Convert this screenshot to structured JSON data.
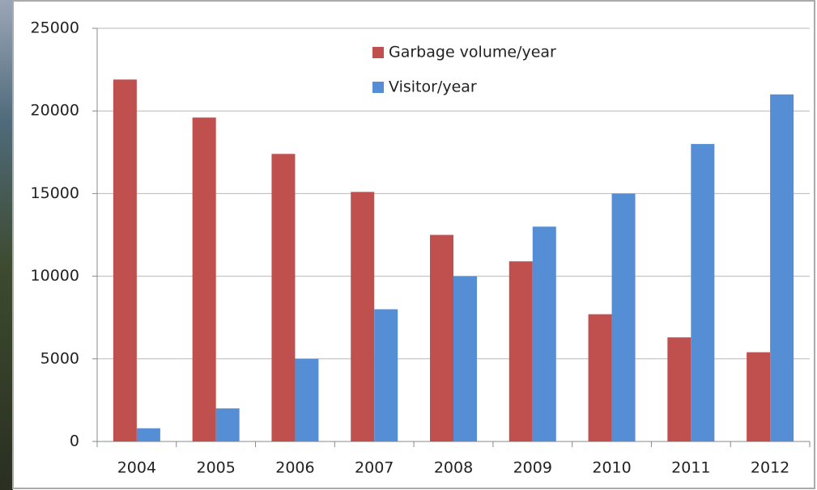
{
  "chart_data": {
    "type": "bar",
    "categories": [
      "2004",
      "2005",
      "2006",
      "2007",
      "2008",
      "2009",
      "2010",
      "2011",
      "2012"
    ],
    "series": [
      {
        "name": "Garbage volume/year",
        "color": "#c0504d",
        "values": [
          21900,
          19600,
          17400,
          15100,
          12500,
          10900,
          7700,
          6300,
          5400
        ]
      },
      {
        "name": "Visitor/year",
        "color": "#558ed5",
        "values": [
          800,
          2000,
          5000,
          8000,
          10000,
          13000,
          15000,
          18000,
          21000
        ]
      }
    ],
    "ylim": [
      0,
      25000
    ],
    "yticks": [
      0,
      5000,
      10000,
      15000,
      20000,
      25000
    ],
    "grid": true,
    "legend": "top"
  }
}
